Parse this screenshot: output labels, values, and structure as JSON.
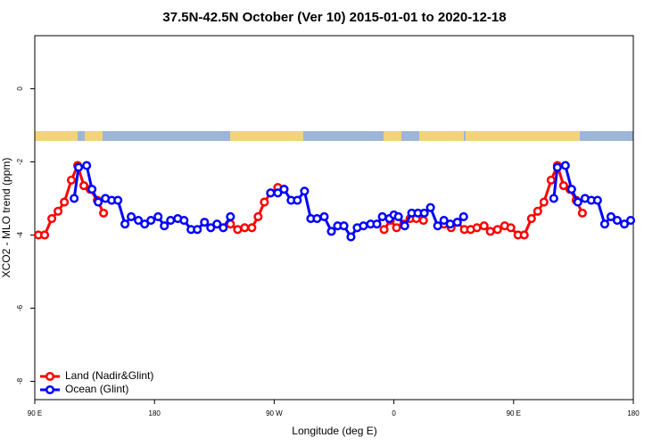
{
  "chart_data": {
    "type": "line",
    "title": "37.5N-42.5N October (Ver 10)   2015-01-01 to 2020-12-18",
    "x_label": "Longitude (deg E)",
    "y_label": "XCO2 - MLO trend (ppm)",
    "xlim": [
      90,
      540
    ],
    "ylim": [
      -8.5,
      1.45
    ],
    "xticks": [
      {
        "value": 90,
        "label": "90 E"
      },
      180,
      {
        "value": 270,
        "label": "90 W"
      },
      {
        "value": 360,
        "label": "0"
      },
      {
        "value": 450,
        "label": "90 E"
      },
      {
        "value": 540,
        "label": "180"
      }
    ],
    "yticks": [
      0,
      -2,
      -4,
      -6,
      -8
    ],
    "legend_position": "bottom-left",
    "series": [
      {
        "name": "Land (Nadir&Glint)",
        "color": "#ff0000",
        "x": [
          92.7,
          97.4,
          102.8,
          107.5,
          112.2,
          117.5,
          122.2,
          126.9,
          131.6,
          137.0,
          141.7,
          null,
          237.1,
          242.5,
          247.8,
          253.2,
          257.9,
          262.6,
          267.3,
          272.7,
          277.4,
          null,
          352.6,
          357.3,
          362.0,
          367.4,
          372.1,
          376.8,
          382.2,
          null,
          397.6,
          403.0,
          407.7,
          413.0,
          417.7,
          422.4,
          427.8,
          432.5,
          437.9,
          443.3,
          447.9,
          453.3,
          458.0,
          463.4,
          468.1,
          472.8,
          478.2,
          482.9,
          487.6,
          492.3,
          497.0,
          501.7
        ],
        "values": [
          -4.0,
          -4.0,
          -3.55,
          -3.35,
          -3.1,
          -2.5,
          -2.1,
          -2.65,
          -2.75,
          -3.05,
          -3.4,
          null,
          -3.7,
          -3.85,
          -3.8,
          -3.8,
          -3.5,
          -3.1,
          -2.85,
          -2.7,
          -2.75,
          null,
          -3.85,
          -3.6,
          -3.8,
          -3.7,
          -3.55,
          -3.55,
          -3.6,
          null,
          -3.7,
          -3.8,
          -3.65,
          -3.85,
          -3.85,
          -3.8,
          -3.75,
          -3.9,
          -3.85,
          -3.75,
          -3.8,
          -4.0,
          -4.0,
          -3.55,
          -3.35,
          -3.1,
          -2.5,
          -2.1,
          -2.65,
          -2.75,
          -3.05,
          -3.4
        ]
      },
      {
        "name": "Ocean (Glint)",
        "color": "#0000ff",
        "x": [
          119.6,
          122.9,
          129.0,
          133.0,
          137.7,
          143.1,
          147.8,
          152.5,
          157.8,
          162.5,
          167.9,
          172.6,
          177.3,
          182.7,
          187.4,
          192.1,
          197.5,
          202.2,
          207.5,
          212.2,
          217.6,
          222.3,
          227.0,
          231.7,
          237.1,
          null,
          267.3,
          272.7,
          277.4,
          282.7,
          287.4,
          292.8,
          297.5,
          302.2,
          307.6,
          313.0,
          317.7,
          322.4,
          327.7,
          332.4,
          337.1,
          342.5,
          347.2,
          351.3,
          356.6,
          360.0,
          363.4,
          368.1,
          373.4,
          378.1,
          382.8,
          387.5,
          392.9,
          397.6,
          402.3,
          407.7,
          412.4,
          null,
          480.2,
          482.9,
          488.9,
          493.6,
          498.3,
          503.7,
          508.4,
          513.1,
          518.5,
          523.2,
          527.9,
          533.3,
          538.0
        ],
        "values": [
          -3.0,
          -2.15,
          -2.1,
          -2.75,
          -3.1,
          -3.0,
          -3.05,
          -3.05,
          -3.7,
          -3.5,
          -3.6,
          -3.7,
          -3.6,
          -3.5,
          -3.75,
          -3.6,
          -3.55,
          -3.6,
          -3.85,
          -3.85,
          -3.65,
          -3.8,
          -3.7,
          -3.8,
          -3.5,
          null,
          -2.85,
          -2.85,
          -2.75,
          -3.05,
          -3.05,
          -2.8,
          -3.55,
          -3.55,
          -3.5,
          -3.9,
          -3.75,
          -3.75,
          -4.05,
          -3.8,
          -3.75,
          -3.7,
          -3.7,
          -3.5,
          -3.55,
          -3.45,
          -3.5,
          -3.75,
          -3.4,
          -3.4,
          -3.4,
          -3.25,
          -3.75,
          -3.6,
          -3.7,
          -3.65,
          -3.5,
          null,
          -3.0,
          -2.15,
          -2.1,
          -2.75,
          -3.1,
          -3.0,
          -3.05,
          -3.05,
          -3.7,
          -3.5,
          -3.6,
          -3.7,
          -3.6
        ]
      }
    ]
  }
}
